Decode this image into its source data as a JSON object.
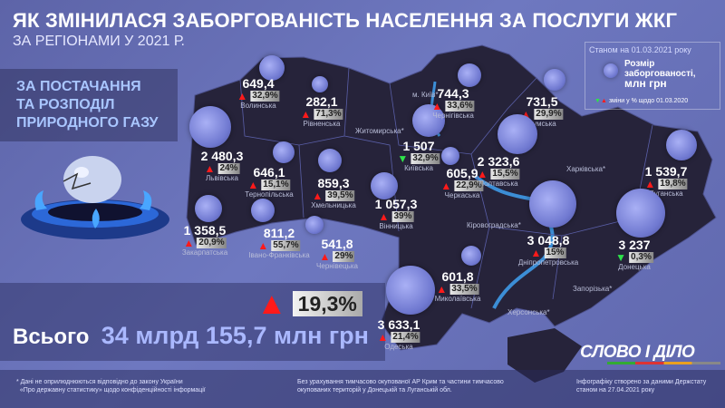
{
  "header": {
    "title": "ЯК ЗМІНИЛАСЯ ЗАБОРГОВАНІСТЬ НАСЕЛЕННЯ ЗА ПОСЛУГИ ЖКГ",
    "subtitle": "ЗА РЕГІОНАМИ У 2021 Р."
  },
  "category": {
    "line1": "ЗА ПОСТАЧАННЯ",
    "line2": "ТА РОЗПОДІЛ",
    "line3": "ПРИРОДНОГО ГАЗУ"
  },
  "total": {
    "label": "Всього",
    "amount": "34 млрд 155,7 млн грн",
    "change": "19,3%",
    "direction": "up"
  },
  "legend": {
    "date": "Станом на 01.03.2021 року",
    "size_line1": "Розмір",
    "size_line2": "заборгованості,",
    "size_line3": "млн грн",
    "changes": "зміни у % щодо 01.03.2020"
  },
  "regions": [
    {
      "name": "Волинська",
      "value": "649,4",
      "change": "32,9%",
      "direction": "up"
    },
    {
      "name": "Рівненська",
      "value": "282,1",
      "change": "71,3%",
      "direction": "up"
    },
    {
      "name": "Львівська",
      "value": "2 480,3",
      "change": "24%",
      "direction": "up"
    },
    {
      "name": "Тернопільська",
      "value": "646,1",
      "change": "15,1%",
      "direction": "up"
    },
    {
      "name": "Хмельницька",
      "value": "859,3",
      "change": "39,5%",
      "direction": "up"
    },
    {
      "name": "Вінницька",
      "value": "1 057,3",
      "change": "39%",
      "direction": "up"
    },
    {
      "name": "Київська",
      "value": "1 507",
      "change": "32,9%",
      "direction": "down"
    },
    {
      "name": "Черкаська",
      "value": "605,9",
      "change": "22,9%",
      "direction": "up"
    },
    {
      "name": "Чернігівська",
      "value": "744,3",
      "change": "33,6%",
      "direction": "up"
    },
    {
      "name": "Сумська",
      "value": "731,5",
      "change": "29,9%",
      "direction": "up"
    },
    {
      "name": "Полтавська",
      "value": "2 323,6",
      "change": "15,5%",
      "direction": "up"
    },
    {
      "name": "Луганська",
      "value": "1 539,7",
      "change": "19,8%",
      "direction": "up"
    },
    {
      "name": "Закарпатська",
      "value": "1 358,5",
      "change": "20,9%",
      "direction": "up"
    },
    {
      "name": "Івано-Франківська",
      "value": "811,2",
      "change": "55,7%",
      "direction": "up"
    },
    {
      "name": "Чернівецька",
      "value": "541,8",
      "change": "29%",
      "direction": "up"
    },
    {
      "name": "Дніпропетровська",
      "value": "3 048,8",
      "change": "15%",
      "direction": "up"
    },
    {
      "name": "Донецька",
      "value": "3 237",
      "change": "0,3%",
      "direction": "down"
    },
    {
      "name": "Миколаївська",
      "value": "601,8",
      "change": "33,5%",
      "direction": "up"
    },
    {
      "name": "Одеська",
      "value": "3 633,1",
      "change": "21,4%",
      "direction": "up"
    }
  ],
  "undisclosed": [
    "м. Київ*",
    "Житомирська*",
    "Харківська*",
    "Кіровоградська*",
    "Запорізька*",
    "Херсонська*"
  ],
  "logo": "СЛОВО І ДІЛО",
  "footer": {
    "note1": "Дані не оприлюднюються відповідно до закону України",
    "note2": "«Про державну статистику» щодо конфіденційності інформації",
    "mid1": "Без урахування тимчасово окупованої АР Крим та частини тимчасово",
    "mid2": "окупованих територій у Донецькій та Луганській обл.",
    "right1": "Інфографіку створено за даними Держстату",
    "right2": "станом на 27.04.2021 року"
  }
}
